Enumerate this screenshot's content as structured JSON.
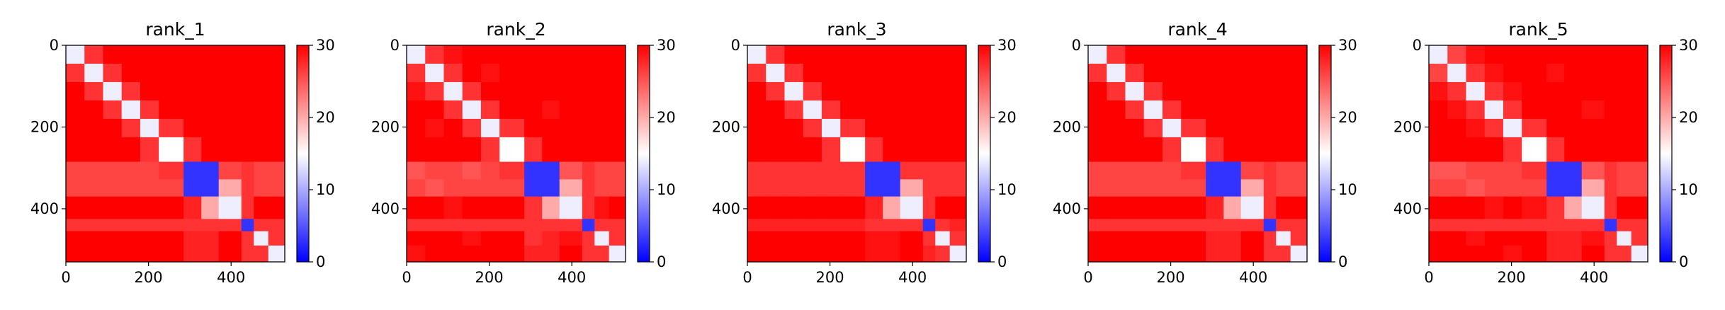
{
  "chart_data": [
    {
      "type": "heatmap",
      "title": "rank_1",
      "colormap": "bwr",
      "x_edges": [
        0,
        45,
        90,
        135,
        180,
        225,
        285,
        328,
        370,
        425,
        455,
        490,
        530
      ],
      "y_edges": [
        0,
        45,
        90,
        135,
        180,
        225,
        285,
        328,
        370,
        425,
        455,
        490,
        530
      ],
      "z": [
        [
          14,
          27,
          30,
          30,
          30,
          30,
          30,
          30,
          30,
          30,
          30,
          30
        ],
        [
          27,
          14,
          27,
          30,
          30,
          30,
          30,
          30,
          30,
          30,
          30,
          30
        ],
        [
          30,
          27,
          14,
          27,
          30,
          30,
          30,
          30,
          30,
          30,
          30,
          30
        ],
        [
          30,
          30,
          27,
          14,
          27,
          30,
          30,
          30,
          30,
          30,
          30,
          30
        ],
        [
          30,
          30,
          30,
          27,
          14,
          27,
          30,
          30,
          30,
          30,
          30,
          30
        ],
        [
          30,
          30,
          30,
          30,
          27,
          15,
          27,
          30,
          30,
          30,
          30,
          30
        ],
        [
          26,
          26,
          26,
          26,
          26,
          27,
          3,
          3,
          26,
          27,
          26,
          26
        ],
        [
          26,
          26,
          26,
          26,
          26,
          26,
          3,
          3,
          20,
          27,
          26,
          26
        ],
        [
          30,
          30,
          30,
          30,
          30,
          30,
          28,
          20,
          14,
          27,
          30,
          30
        ],
        [
          27,
          27,
          27,
          27,
          27,
          27,
          27,
          27,
          27,
          3,
          27,
          27
        ],
        [
          30,
          30,
          30,
          30,
          30,
          30,
          28,
          28,
          30,
          27,
          14,
          27
        ],
        [
          30,
          30,
          30,
          30,
          30,
          30,
          28,
          28,
          30,
          27,
          27,
          14
        ]
      ],
      "xlim": [
        0,
        530
      ],
      "ylim": [
        530,
        0
      ],
      "xticks": [
        0,
        200,
        400
      ],
      "yticks": [
        0,
        200,
        400
      ],
      "colorbar_lim": [
        0,
        30
      ],
      "colorbar_ticks": [
        0,
        10,
        20,
        30
      ]
    },
    {
      "type": "heatmap",
      "title": "rank_2",
      "colormap": "bwr",
      "x_edges": [
        0,
        45,
        90,
        135,
        180,
        225,
        285,
        328,
        370,
        425,
        455,
        490,
        530
      ],
      "y_edges": [
        0,
        45,
        90,
        135,
        180,
        225,
        285,
        328,
        370,
        425,
        455,
        490,
        530
      ],
      "z": [
        [
          14,
          27,
          29,
          30,
          30,
          30,
          30,
          30,
          30,
          30,
          30,
          30
        ],
        [
          27,
          14,
          27,
          30,
          29,
          30,
          30,
          30,
          30,
          30,
          30,
          30
        ],
        [
          29,
          27,
          14,
          27,
          30,
          30,
          30,
          30,
          30,
          30,
          30,
          30
        ],
        [
          30,
          30,
          27,
          14,
          27,
          30,
          30,
          29,
          30,
          30,
          30,
          30
        ],
        [
          30,
          29,
          30,
          27,
          14,
          27,
          30,
          30,
          30,
          30,
          30,
          30
        ],
        [
          30,
          30,
          30,
          30,
          27,
          15,
          27,
          30,
          30,
          30,
          30,
          30
        ],
        [
          25,
          26,
          26,
          25,
          26,
          27,
          3,
          3,
          25,
          27,
          26,
          26
        ],
        [
          26,
          25,
          26,
          26,
          26,
          26,
          3,
          3,
          20,
          27,
          26,
          26
        ],
        [
          30,
          30,
          29,
          30,
          30,
          30,
          27,
          20,
          14,
          27,
          29,
          30
        ],
        [
          27,
          27,
          27,
          27,
          27,
          27,
          27,
          27,
          27,
          3,
          27,
          27
        ],
        [
          30,
          30,
          30,
          29,
          30,
          30,
          27,
          28,
          29,
          27,
          14,
          27
        ],
        [
          29,
          30,
          30,
          30,
          30,
          30,
          28,
          28,
          30,
          27,
          27,
          14
        ]
      ],
      "xlim": [
        0,
        530
      ],
      "ylim": [
        530,
        0
      ],
      "xticks": [
        0,
        200,
        400
      ],
      "yticks": [
        0,
        200,
        400
      ],
      "colorbar_lim": [
        0,
        30
      ],
      "colorbar_ticks": [
        0,
        10,
        20,
        30
      ]
    },
    {
      "type": "heatmap",
      "title": "rank_3",
      "colormap": "bwr",
      "x_edges": [
        0,
        45,
        90,
        135,
        180,
        225,
        285,
        328,
        370,
        425,
        455,
        490,
        530
      ],
      "y_edges": [
        0,
        45,
        90,
        135,
        180,
        225,
        285,
        328,
        370,
        425,
        455,
        490,
        530
      ],
      "z": [
        [
          14,
          27,
          30,
          30,
          30,
          30,
          30,
          30,
          30,
          30,
          30,
          30
        ],
        [
          27,
          14,
          27,
          30,
          30,
          30,
          30,
          30,
          30,
          30,
          30,
          30
        ],
        [
          30,
          27,
          14,
          27,
          30,
          30,
          30,
          30,
          30,
          30,
          30,
          30
        ],
        [
          30,
          30,
          27,
          14,
          27,
          30,
          30,
          30,
          30,
          30,
          30,
          30
        ],
        [
          30,
          30,
          30,
          27,
          14,
          27,
          30,
          30,
          30,
          30,
          30,
          30
        ],
        [
          30,
          30,
          30,
          30,
          27,
          15,
          27,
          30,
          30,
          30,
          30,
          30
        ],
        [
          27,
          27,
          27,
          27,
          27,
          27,
          3,
          3,
          27,
          27,
          27,
          27
        ],
        [
          27,
          27,
          27,
          27,
          27,
          27,
          3,
          3,
          20,
          27,
          27,
          27
        ],
        [
          30,
          30,
          30,
          30,
          30,
          30,
          28,
          20,
          14,
          27,
          30,
          30
        ],
        [
          28,
          28,
          28,
          28,
          28,
          28,
          27,
          27,
          27,
          3,
          27,
          28
        ],
        [
          30,
          30,
          30,
          30,
          30,
          30,
          29,
          29,
          30,
          27,
          14,
          27
        ],
        [
          30,
          30,
          30,
          30,
          30,
          30,
          29,
          29,
          30,
          28,
          27,
          14
        ]
      ],
      "xlim": [
        0,
        530
      ],
      "ylim": [
        530,
        0
      ],
      "xticks": [
        0,
        200,
        400
      ],
      "yticks": [
        0,
        200,
        400
      ],
      "colorbar_lim": [
        0,
        30
      ],
      "colorbar_ticks": [
        0,
        10,
        20,
        30
      ]
    },
    {
      "type": "heatmap",
      "title": "rank_4",
      "colormap": "bwr",
      "x_edges": [
        0,
        45,
        90,
        135,
        180,
        225,
        285,
        328,
        370,
        425,
        455,
        490,
        530
      ],
      "y_edges": [
        0,
        45,
        90,
        135,
        180,
        225,
        285,
        328,
        370,
        425,
        455,
        490,
        530
      ],
      "z": [
        [
          14,
          27,
          30,
          30,
          30,
          30,
          30,
          30,
          30,
          30,
          30,
          30
        ],
        [
          27,
          14,
          27,
          30,
          30,
          30,
          30,
          30,
          30,
          30,
          30,
          30
        ],
        [
          30,
          27,
          14,
          27,
          30,
          30,
          30,
          30,
          30,
          30,
          30,
          30
        ],
        [
          30,
          30,
          27,
          14,
          27,
          30,
          30,
          30,
          30,
          30,
          30,
          30
        ],
        [
          30,
          30,
          30,
          27,
          14,
          27,
          30,
          30,
          30,
          30,
          30,
          30
        ],
        [
          30,
          30,
          30,
          30,
          27,
          15,
          27,
          30,
          30,
          30,
          30,
          30
        ],
        [
          26,
          26,
          26,
          26,
          26,
          27,
          3,
          3,
          26,
          27,
          26,
          26
        ],
        [
          26,
          26,
          26,
          26,
          26,
          26,
          3,
          3,
          20,
          27,
          26,
          26
        ],
        [
          30,
          30,
          30,
          30,
          30,
          30,
          28,
          20,
          14,
          27,
          30,
          30
        ],
        [
          27,
          27,
          27,
          27,
          27,
          27,
          27,
          27,
          27,
          3,
          27,
          27
        ],
        [
          30,
          30,
          30,
          30,
          30,
          30,
          28,
          28,
          30,
          27,
          14,
          27
        ],
        [
          30,
          30,
          30,
          30,
          30,
          30,
          28,
          28,
          30,
          27,
          27,
          14
        ]
      ],
      "xlim": [
        0,
        530
      ],
      "ylim": [
        530,
        0
      ],
      "xticks": [
        0,
        200,
        400
      ],
      "yticks": [
        0,
        200,
        400
      ],
      "colorbar_lim": [
        0,
        30
      ],
      "colorbar_ticks": [
        0,
        10,
        20,
        30
      ]
    },
    {
      "type": "heatmap",
      "title": "rank_5",
      "colormap": "bwr",
      "x_edges": [
        0,
        45,
        90,
        135,
        180,
        225,
        285,
        328,
        370,
        425,
        455,
        490,
        530
      ],
      "y_edges": [
        0,
        45,
        90,
        135,
        180,
        225,
        285,
        328,
        370,
        425,
        455,
        490,
        530
      ],
      "z": [
        [
          14,
          26,
          29,
          30,
          30,
          30,
          30,
          30,
          30,
          30,
          30,
          30
        ],
        [
          26,
          14,
          27,
          29,
          30,
          30,
          29,
          30,
          30,
          30,
          30,
          30
        ],
        [
          29,
          27,
          14,
          27,
          29,
          30,
          30,
          30,
          30,
          30,
          30,
          30
        ],
        [
          30,
          29,
          27,
          14,
          27,
          30,
          30,
          30,
          29,
          30,
          30,
          30
        ],
        [
          30,
          30,
          29,
          27,
          14,
          27,
          30,
          30,
          30,
          30,
          30,
          30
        ],
        [
          30,
          30,
          30,
          30,
          27,
          15,
          27,
          30,
          30,
          30,
          30,
          30
        ],
        [
          25,
          25,
          26,
          26,
          26,
          27,
          3,
          3,
          25,
          27,
          26,
          26
        ],
        [
          26,
          26,
          25,
          26,
          26,
          26,
          3,
          3,
          20,
          27,
          26,
          26
        ],
        [
          30,
          30,
          30,
          29,
          30,
          29,
          27,
          20,
          14,
          27,
          30,
          30
        ],
        [
          27,
          27,
          27,
          27,
          27,
          27,
          27,
          27,
          27,
          3,
          27,
          27
        ],
        [
          30,
          30,
          29,
          30,
          30,
          30,
          28,
          28,
          29,
          27,
          14,
          27
        ],
        [
          30,
          30,
          30,
          30,
          29,
          30,
          28,
          28,
          30,
          27,
          27,
          14
        ]
      ],
      "xlim": [
        0,
        530
      ],
      "ylim": [
        530,
        0
      ],
      "xticks": [
        0,
        200,
        400
      ],
      "yticks": [
        0,
        200,
        400
      ],
      "colorbar_lim": [
        0,
        30
      ],
      "colorbar_ticks": [
        0,
        10,
        20,
        30
      ]
    }
  ]
}
